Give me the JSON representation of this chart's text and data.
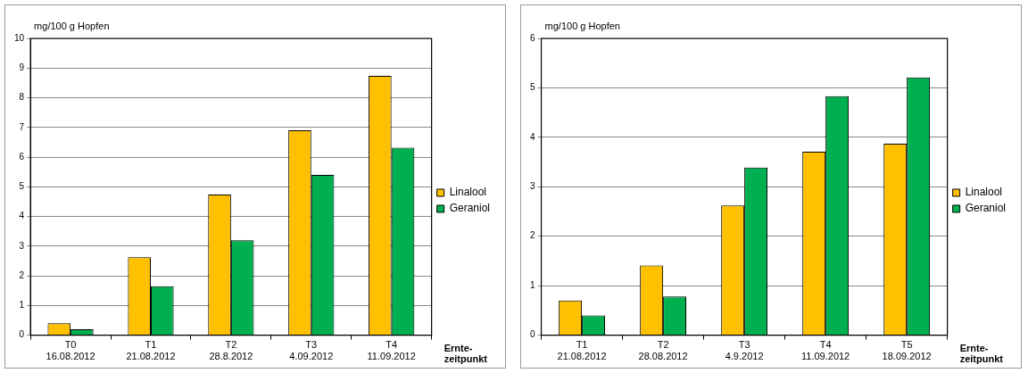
{
  "chart_data": [
    {
      "type": "bar",
      "ylabel": "mg/100 g Hopfen",
      "xlabel": "Ernte-\nzeitpunkt",
      "categories": [
        "T0\n16.08.2012",
        "T1\n21.08.2012",
        "T2\n28.8.2012",
        "T3\n4.09.2012",
        "T4\n11.09.2012"
      ],
      "series": [
        {
          "name": "Linalool",
          "color": "#ffc000",
          "values": [
            0.4,
            2.63,
            4.74,
            6.9,
            8.74
          ]
        },
        {
          "name": "Geraniol",
          "color": "#00b050",
          "values": [
            0.2,
            1.65,
            3.2,
            5.4,
            6.32
          ]
        }
      ],
      "ylim": [
        0,
        10
      ],
      "yticks": [
        0,
        1,
        2,
        3,
        4,
        5,
        6,
        7,
        8,
        9,
        10
      ],
      "grid": "y",
      "legend": "right"
    },
    {
      "type": "bar",
      "ylabel": "mg/100 g Hopfen",
      "xlabel": "Ernte-\nzeitpunkt",
      "categories": [
        "T1\n21.08.2012",
        "T2\n28.08.2012",
        "T3\n4.9.2012",
        "T4\n11.09.2012",
        "T5\n18.09.2012"
      ],
      "series": [
        {
          "name": "Linalool",
          "color": "#ffc000",
          "values": [
            0.7,
            1.41,
            2.62,
            3.71,
            3.87
          ]
        },
        {
          "name": "Geraniol",
          "color": "#00b050",
          "values": [
            0.4,
            0.78,
            3.39,
            4.83,
            5.21
          ]
        }
      ],
      "ylim": [
        0,
        6
      ],
      "yticks": [
        0,
        1,
        2,
        3,
        4,
        5,
        6
      ],
      "grid": "y",
      "legend": "right"
    }
  ]
}
